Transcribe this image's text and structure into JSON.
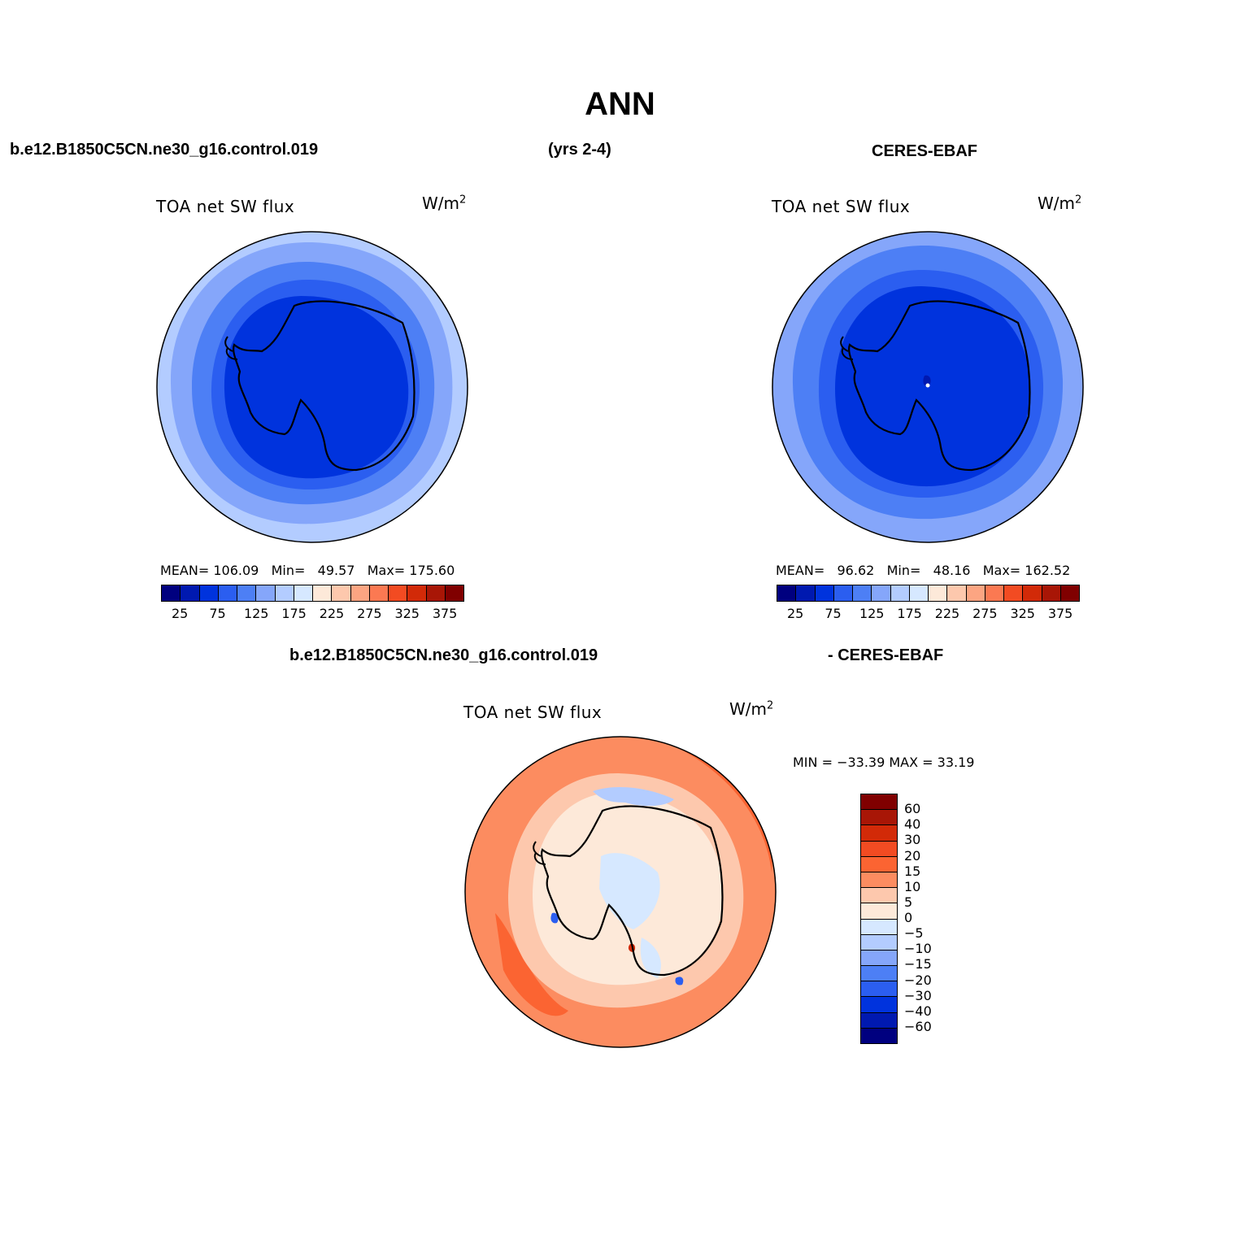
{
  "title": "ANN",
  "case_name": "b.e12.B1850C5CN.ne30_g16.control.019",
  "years": "(yrs 2-4)",
  "obs_name": "CERES-EBAF",
  "diff_case_name": "b.e12.B1850C5CN.ne30_g16.control.019",
  "diff_obs_name": "- CERES-EBAF",
  "panels": [
    {
      "id": "model",
      "variable": "TOA net SW flux",
      "units_base": "W/m",
      "units_exp": "2",
      "mean_label": "MEAN=",
      "mean": "106.09",
      "min_label": "Min=",
      "min": "49.57",
      "max_label": "Max=",
      "max": "175.60"
    },
    {
      "id": "obs",
      "variable": "TOA net SW flux",
      "units_base": "W/m",
      "units_exp": "2",
      "mean_label": "MEAN=",
      "mean": "96.62",
      "min_label": "Min=",
      "min": "48.16",
      "max_label": "Max=",
      "max": "162.52"
    }
  ],
  "colorbar": {
    "colors": [
      "#00007f",
      "#0019b0",
      "#0033dd",
      "#2b5ef0",
      "#4d7ff5",
      "#85a6fa",
      "#b3ccff",
      "#d6e8ff",
      "#fde9d9",
      "#fdc8ad",
      "#fca582",
      "#fb7952",
      "#f24b22",
      "#d22a08",
      "#a81606",
      "#800000"
    ],
    "labels": [
      "25",
      "75",
      "125",
      "175",
      "225",
      "275",
      "325",
      "375"
    ]
  },
  "diff_panel": {
    "variable": "TOA net SW flux",
    "units_base": "W/m",
    "units_exp": "2",
    "minmax_text": "MIN = −33.39 MAX =  33.19",
    "colorbar_colors_top_down": [
      "#800000",
      "#a81606",
      "#d22a08",
      "#f24b22",
      "#fb6432",
      "#fc8c60",
      "#fdc8ad",
      "#fde9d9",
      "#d6e8ff",
      "#b3ccff",
      "#85a6fa",
      "#4d7ff5",
      "#2b5ef0",
      "#0033dd",
      "#0019b0",
      "#00007f"
    ],
    "colorbar_labels": [
      "60",
      "40",
      "30",
      "20",
      "15",
      "10",
      "5",
      "0",
      "−5",
      "−10",
      "−15",
      "−20",
      "−30",
      "−40",
      "−60"
    ]
  }
}
